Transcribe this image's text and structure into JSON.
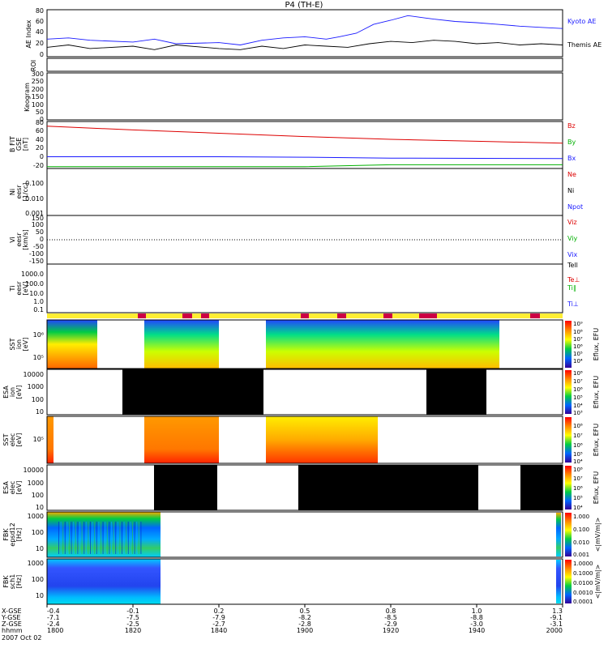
{
  "title": "P4 (TH-E)",
  "colors": {
    "blue": "#1a1aff",
    "red": "#dd0000",
    "green": "#00b000",
    "black": "#000000",
    "yellow": "#ffee33",
    "magenta": "#cc0044"
  },
  "ae_panel": {
    "ylabel": "AE Index",
    "ticks": [
      "80",
      "60",
      "40",
      "20",
      "0"
    ],
    "legend_kyoto": "Kyoto AE",
    "legend_themis": "Themis AE"
  },
  "roi_panel": {
    "ylabel": "ROI"
  },
  "keogram_panel": {
    "ylabel": "Keogram",
    "ticks": [
      "300",
      "250",
      "200",
      "150",
      "100",
      "50",
      "0"
    ]
  },
  "bfield_panel": {
    "ylabel_lines": [
      "B FIT",
      "GSE",
      "[nT]"
    ],
    "ticks": [
      "80",
      "60",
      "40",
      "20",
      "0",
      "-20"
    ],
    "legend": [
      "Bz",
      "By",
      "Bx"
    ]
  },
  "density_panel": {
    "ylabel_lines": [
      "Ni",
      "eesr",
      "[1/cc]"
    ],
    "ticks": [
      "0.100",
      "0.010",
      "0.001"
    ],
    "legend": [
      "Ne",
      "Ni",
      "Npot"
    ]
  },
  "velocity_panel": {
    "ylabel_lines": [
      "Vi",
      "eesr",
      "[km/s]"
    ],
    "ticks": [
      "150",
      "100",
      "50",
      "0",
      "-50",
      "-100",
      "-150"
    ],
    "legend": [
      "Viz",
      "Viy",
      "Vix"
    ]
  },
  "temperature_panel": {
    "ylabel_lines": [
      "Ti",
      "eesr",
      "[eV]"
    ],
    "ticks": [
      "1000.0",
      "100.0",
      "10.0",
      "1.0",
      "0.1"
    ],
    "legend": [
      "Tell",
      "Te⊥",
      "Ti∥",
      "Ti⊥"
    ]
  },
  "sst_ion": {
    "ylabel_lines": [
      "SST",
      "ion",
      "[eV]"
    ],
    "ticks": [
      "10⁶",
      "10⁵"
    ],
    "cbar_label": "Eflux, EFU",
    "cbar_ticks": [
      "10⁹",
      "10⁸",
      "10⁷",
      "10⁶",
      "10⁵",
      "10⁴",
      "10³"
    ]
  },
  "esa_ion": {
    "ylabel_lines": [
      "ESA",
      "ion",
      "[eV]"
    ],
    "ticks": [
      "10000",
      "1000",
      "100",
      "10"
    ],
    "cbar_label": "Eflux, EFU",
    "cbar_ticks": [
      "10⁸",
      "10⁷",
      "10⁶",
      "10⁵",
      "10⁴",
      "10³"
    ]
  },
  "sst_elec": {
    "ylabel_lines": [
      "SST",
      "elec",
      "[eV]"
    ],
    "ticks": [
      "10⁵"
    ],
    "cbar_label": "Eflux, EFU",
    "cbar_ticks": [
      "10⁸",
      "10⁷",
      "10⁶",
      "10⁵",
      "10⁴"
    ]
  },
  "esa_elec": {
    "ylabel_lines": [
      "ESA",
      "elec",
      "[eV]"
    ],
    "ticks": [
      "10000",
      "1000",
      "100",
      "10"
    ],
    "cbar_label": "Eflux, EFU",
    "cbar_ticks": [
      "10⁸",
      "10⁷",
      "10⁶",
      "10⁵",
      "10⁴"
    ]
  },
  "fbk_e": {
    "ylabel_lines": [
      "FBK",
      "epsd12",
      "[Hz]"
    ],
    "ticks": [
      "1000",
      "100",
      "10"
    ],
    "cbar_label": "<|mV/m|>",
    "cbar_ticks": [
      "1.000",
      "0.100",
      "0.010",
      "0.001"
    ]
  },
  "fbk_b": {
    "ylabel_lines": [
      "FBK",
      "sch1",
      "[Hz]"
    ],
    "ticks": [
      "1000",
      "100",
      "10"
    ],
    "cbar_label": "<|mV/m|>",
    "cbar_ticks": [
      "1.0000",
      "0.1000",
      "0.0100",
      "0.0010",
      "0.0001"
    ]
  },
  "xaxis": {
    "row_labels": [
      "X-GSE",
      "Y-GSE",
      "Z-GSE",
      "hhmm"
    ],
    "date": "2007 Oct 02",
    "columns": [
      {
        "x": "-0.4",
        "y": "-7.1",
        "z": "-2.4",
        "t": "1800"
      },
      {
        "x": "-0.1",
        "y": "-7.5",
        "z": "-2.5",
        "t": "1820"
      },
      {
        "x": "0.2",
        "y": "-7.9",
        "z": "-2.7",
        "t": "1840"
      },
      {
        "x": "0.5",
        "y": "-8.2",
        "z": "-2.8",
        "t": "1900"
      },
      {
        "x": "0.8",
        "y": "-8.5",
        "z": "-2.9",
        "t": "1920"
      },
      {
        "x": "1.0",
        "y": "-8.8",
        "z": "-3.0",
        "t": "1940"
      },
      {
        "x": "1.3",
        "y": "-9.1",
        "z": "-3.1",
        "t": "2000"
      }
    ]
  },
  "chart_data": {
    "type": "line",
    "title": "P4 (TH-E)",
    "x_unit": "hhmm",
    "xlim": [
      "1800",
      "2000"
    ],
    "series": [
      {
        "name": "Kyoto AE",
        "panel": "AE Index",
        "x_minutes": [
          0,
          5,
          10,
          20,
          25,
          30,
          40,
          45,
          50,
          55,
          60,
          65,
          68,
          72,
          76,
          80,
          84,
          88,
          90,
          95,
          100,
          105,
          110,
          115,
          120
        ],
        "values": [
          30,
          32,
          28,
          25,
          30,
          22,
          24,
          20,
          28,
          32,
          34,
          30,
          34,
          40,
          55,
          62,
          70,
          66,
          64,
          60,
          58,
          55,
          52,
          50,
          48
        ]
      },
      {
        "name": "Themis AE",
        "panel": "AE Index",
        "x_minutes": [
          0,
          5,
          10,
          20,
          25,
          30,
          40,
          45,
          50,
          55,
          60,
          65,
          70,
          75,
          80,
          85,
          90,
          95,
          100,
          105,
          110,
          115,
          120
        ],
        "values": [
          16,
          20,
          14,
          18,
          12,
          20,
          14,
          12,
          18,
          14,
          20,
          18,
          16,
          22,
          26,
          24,
          28,
          26,
          22,
          24,
          20,
          22,
          20
        ]
      },
      {
        "name": "Bz",
        "panel": "B FIT",
        "x_minutes": [
          0,
          20,
          40,
          60,
          80,
          100,
          120
        ],
        "values": [
          70,
          62,
          55,
          48,
          42,
          38,
          34
        ]
      },
      {
        "name": "By",
        "panel": "B FIT",
        "x_minutes": [
          0,
          60,
          80,
          120
        ],
        "values": [
          -16,
          -16,
          -12,
          -12
        ]
      },
      {
        "name": "Bx",
        "panel": "B FIT",
        "x_minutes": [
          0,
          40,
          60,
          80,
          120
        ],
        "values": [
          5,
          5,
          4,
          2,
          1
        ]
      }
    ],
    "ylim_ae": [
      0,
      80
    ],
    "ylim_b": [
      -20,
      80
    ]
  }
}
